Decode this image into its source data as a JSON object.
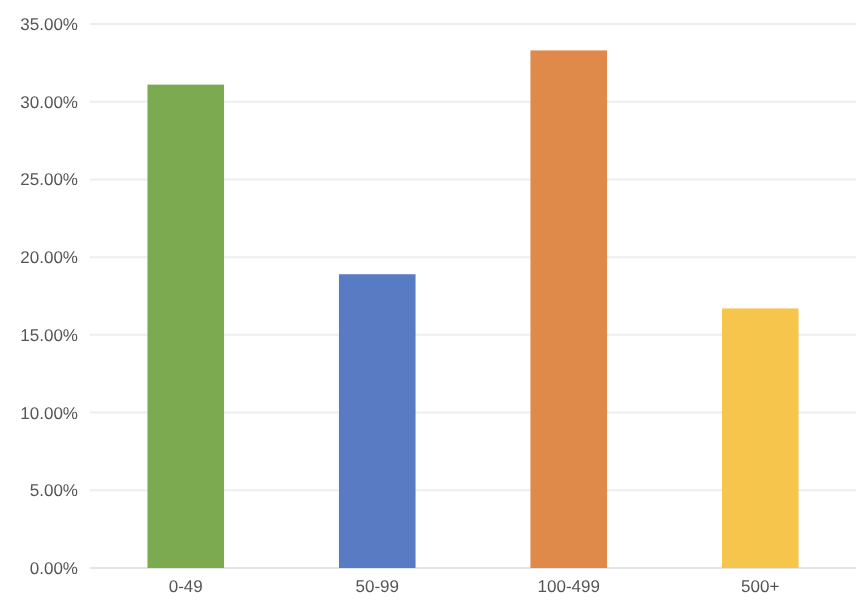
{
  "chart_data": {
    "type": "bar",
    "categories": [
      "0-49",
      "50-99",
      "100-499",
      "500+"
    ],
    "values": [
      31.1,
      18.9,
      33.3,
      16.7
    ],
    "colors": [
      "#7caa51",
      "#587bc3",
      "#df8a4b",
      "#f6c64c"
    ],
    "ylim": [
      0,
      35
    ],
    "yticks": [
      {
        "value": 0,
        "label": "0.00%"
      },
      {
        "value": 5,
        "label": "5.00%"
      },
      {
        "value": 10,
        "label": "10.00%"
      },
      {
        "value": 15,
        "label": "15.00%"
      },
      {
        "value": 20,
        "label": "20.00%"
      },
      {
        "value": 25,
        "label": "25.00%"
      },
      {
        "value": 30,
        "label": "30.00%"
      },
      {
        "value": 35,
        "label": "35.00%"
      }
    ],
    "grid": "y"
  }
}
